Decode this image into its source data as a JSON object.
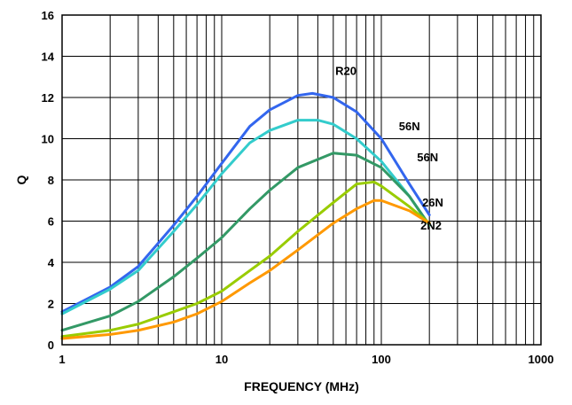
{
  "chart_data": {
    "type": "line",
    "xlabel": "FREQUENCY (MHz)",
    "ylabel": "Q",
    "x_scale": "log",
    "xlim": [
      1,
      1000
    ],
    "ylim": [
      0,
      16
    ],
    "x_tick_labels": [
      {
        "value": 1,
        "label": "1"
      },
      {
        "value": 10,
        "label": "10"
      },
      {
        "value": 100,
        "label": "100"
      },
      {
        "value": 1000,
        "label": "1000"
      }
    ],
    "y_tick_labels": [
      {
        "value": 0,
        "label": "0"
      },
      {
        "value": 2,
        "label": "2"
      },
      {
        "value": 4,
        "label": "4"
      },
      {
        "value": 6,
        "label": "6"
      },
      {
        "value": 8,
        "label": "8"
      },
      {
        "value": 10,
        "label": "10"
      },
      {
        "value": 12,
        "label": "12"
      },
      {
        "value": 14,
        "label": "14"
      },
      {
        "value": 16,
        "label": "16"
      }
    ],
    "grid": true,
    "legend": "none",
    "series": [
      {
        "name": "R20",
        "color": "#3366ee",
        "points": [
          [
            1,
            1.6
          ],
          [
            2,
            2.8
          ],
          [
            3,
            3.8
          ],
          [
            5,
            5.8
          ],
          [
            7,
            7.2
          ],
          [
            10,
            8.8
          ],
          [
            15,
            10.6
          ],
          [
            20,
            11.4
          ],
          [
            30,
            12.1
          ],
          [
            37,
            12.2
          ],
          [
            50,
            12.0
          ],
          [
            70,
            11.3
          ],
          [
            100,
            10.0
          ],
          [
            150,
            7.8
          ],
          [
            200,
            6.3
          ]
        ]
      },
      {
        "name": "56N",
        "color": "#33cccc",
        "points": [
          [
            1,
            1.5
          ],
          [
            2,
            2.7
          ],
          [
            3,
            3.6
          ],
          [
            5,
            5.5
          ],
          [
            7,
            6.8
          ],
          [
            10,
            8.3
          ],
          [
            15,
            9.8
          ],
          [
            20,
            10.4
          ],
          [
            30,
            10.9
          ],
          [
            40,
            10.9
          ],
          [
            50,
            10.7
          ],
          [
            70,
            10.0
          ],
          [
            100,
            8.9
          ],
          [
            150,
            7.2
          ],
          [
            200,
            5.8
          ]
        ]
      },
      {
        "name": "56N",
        "color": "#339966",
        "points": [
          [
            1,
            0.7
          ],
          [
            2,
            1.4
          ],
          [
            3,
            2.1
          ],
          [
            5,
            3.3
          ],
          [
            7,
            4.2
          ],
          [
            10,
            5.2
          ],
          [
            15,
            6.6
          ],
          [
            20,
            7.5
          ],
          [
            30,
            8.6
          ],
          [
            50,
            9.3
          ],
          [
            70,
            9.2
          ],
          [
            100,
            8.6
          ],
          [
            150,
            7.2
          ],
          [
            200,
            5.8
          ]
        ]
      },
      {
        "name": "26N",
        "color": "#99cc00",
        "points": [
          [
            1,
            0.4
          ],
          [
            2,
            0.7
          ],
          [
            3,
            1.0
          ],
          [
            5,
            1.6
          ],
          [
            7,
            2.0
          ],
          [
            10,
            2.6
          ],
          [
            15,
            3.6
          ],
          [
            20,
            4.3
          ],
          [
            30,
            5.5
          ],
          [
            50,
            6.9
          ],
          [
            70,
            7.8
          ],
          [
            90,
            7.9
          ],
          [
            100,
            7.7
          ],
          [
            150,
            6.7
          ],
          [
            200,
            5.9
          ]
        ]
      },
      {
        "name": "2N2",
        "color": "#ff9900",
        "points": [
          [
            1,
            0.3
          ],
          [
            2,
            0.5
          ],
          [
            3,
            0.7
          ],
          [
            5,
            1.1
          ],
          [
            7,
            1.5
          ],
          [
            10,
            2.1
          ],
          [
            15,
            3.0
          ],
          [
            20,
            3.6
          ],
          [
            30,
            4.6
          ],
          [
            50,
            5.9
          ],
          [
            70,
            6.6
          ],
          [
            90,
            7.0
          ],
          [
            100,
            7.0
          ],
          [
            150,
            6.5
          ],
          [
            200,
            5.9
          ]
        ]
      }
    ],
    "annotations": [
      {
        "text": "R20",
        "x": 60,
        "y": 13.1
      },
      {
        "text": "56N",
        "x": 150,
        "y": 10.4
      },
      {
        "text": "56N",
        "x": 195,
        "y": 8.9
      },
      {
        "text": "26N",
        "x": 210,
        "y": 6.7
      },
      {
        "text": "2N2",
        "x": 205,
        "y": 5.6
      }
    ]
  }
}
